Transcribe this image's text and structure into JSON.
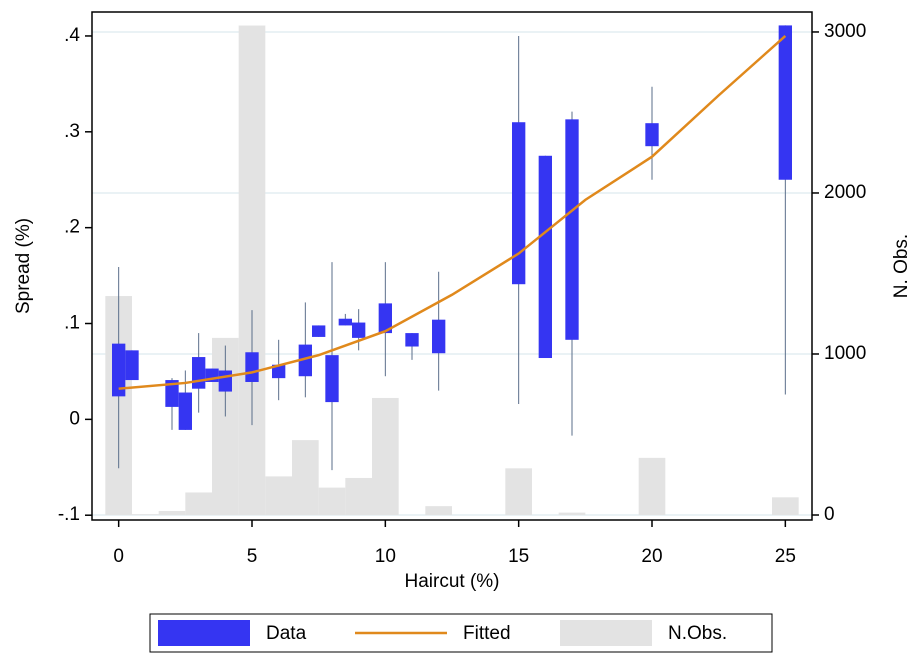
{
  "chart_data": {
    "type": "box",
    "x_label": "Haircut (%)",
    "y_label": "Spread (%)",
    "y2_label": "N. Obs.",
    "xlim": [
      -1,
      26
    ],
    "xticks": [
      0,
      5,
      10,
      15,
      20,
      25
    ],
    "ylim": [
      -0.105,
      0.425
    ],
    "yticks": [
      {
        "value": -0.1,
        "label": "-.1"
      },
      0,
      {
        "value": 0.1,
        "label": ".1"
      },
      {
        "value": 0.2,
        "label": ".2"
      },
      {
        "value": 0.3,
        "label": ".3"
      },
      {
        "value": 0.4,
        "label": ".4"
      }
    ],
    "y2lim": [
      -31,
      3124
    ],
    "y2ticks": [
      0,
      1000,
      2000,
      3000
    ],
    "grid": "y2",
    "series": [
      {
        "name": "Data",
        "type": "box",
        "color": "#3535f2",
        "whisker_color": "#5a6e8a",
        "x": [
          0,
          0.5,
          2,
          2.5,
          3,
          3.5,
          4,
          5,
          6,
          7,
          7.5,
          8,
          8.5,
          9,
          10,
          11,
          12,
          15,
          16,
          17,
          20,
          25
        ],
        "box_low": [
          0.024,
          0.041,
          0.013,
          -0.011,
          0.032,
          0.039,
          0.029,
          0.039,
          0.043,
          0.045,
          0.086,
          0.018,
          0.098,
          0.085,
          0.09,
          0.076,
          0.069,
          0.141,
          0.064,
          0.083,
          0.285,
          0.25
        ],
        "box_high": [
          0.079,
          0.072,
          0.041,
          0.028,
          0.065,
          0.053,
          0.051,
          0.07,
          0.057,
          0.078,
          0.098,
          0.067,
          0.105,
          0.101,
          0.121,
          0.09,
          0.104,
          0.31,
          0.275,
          0.313,
          0.309,
          0.411
        ],
        "whisker_low": [
          -0.051,
          0.041,
          -0.011,
          -0.011,
          0.007,
          0.039,
          0.003,
          -0.006,
          0.02,
          0.023,
          0.086,
          -0.053,
          0.098,
          0.072,
          0.045,
          0.062,
          0.03,
          0.016,
          0.064,
          -0.017,
          0.25,
          0.026
        ],
        "whisker_high": [
          0.159,
          0.072,
          0.043,
          0.051,
          0.09,
          0.053,
          0.077,
          0.114,
          0.083,
          0.122,
          0.098,
          0.164,
          0.11,
          0.115,
          0.164,
          0.09,
          0.154,
          0.4,
          0.275,
          0.321,
          0.347,
          0.411
        ]
      },
      {
        "name": "Fitted",
        "type": "line",
        "color": "#e0891c",
        "x": [
          0,
          2.5,
          5,
          7.5,
          10,
          12.5,
          15,
          17.5,
          20,
          22.5,
          25
        ],
        "values": [
          0.032,
          0.038,
          0.049,
          0.067,
          0.092,
          0.13,
          0.173,
          0.229,
          0.274,
          0.338,
          0.4
        ]
      },
      {
        "name": "N.Obs.",
        "type": "histogram",
        "axis": "y2",
        "color": "#e3e3e3",
        "bins": [
          -0.5,
          0.5,
          1.5,
          2.5,
          3.5,
          4.5,
          5.5,
          6.5,
          7.5,
          8.5,
          9.5,
          10.5,
          11.5,
          12.5,
          13.5,
          14.5,
          15.5,
          16.5,
          17.5,
          18.5,
          19.5,
          20.5,
          21.5,
          22.5,
          23.5,
          24.5,
          25.5
        ],
        "counts": [
          1360,
          5,
          25,
          140,
          1100,
          3040,
          240,
          465,
          170,
          230,
          727,
          0,
          55,
          0,
          0,
          290,
          0,
          15,
          0,
          0,
          355,
          0,
          0,
          0,
          0,
          110
        ]
      }
    ]
  }
}
